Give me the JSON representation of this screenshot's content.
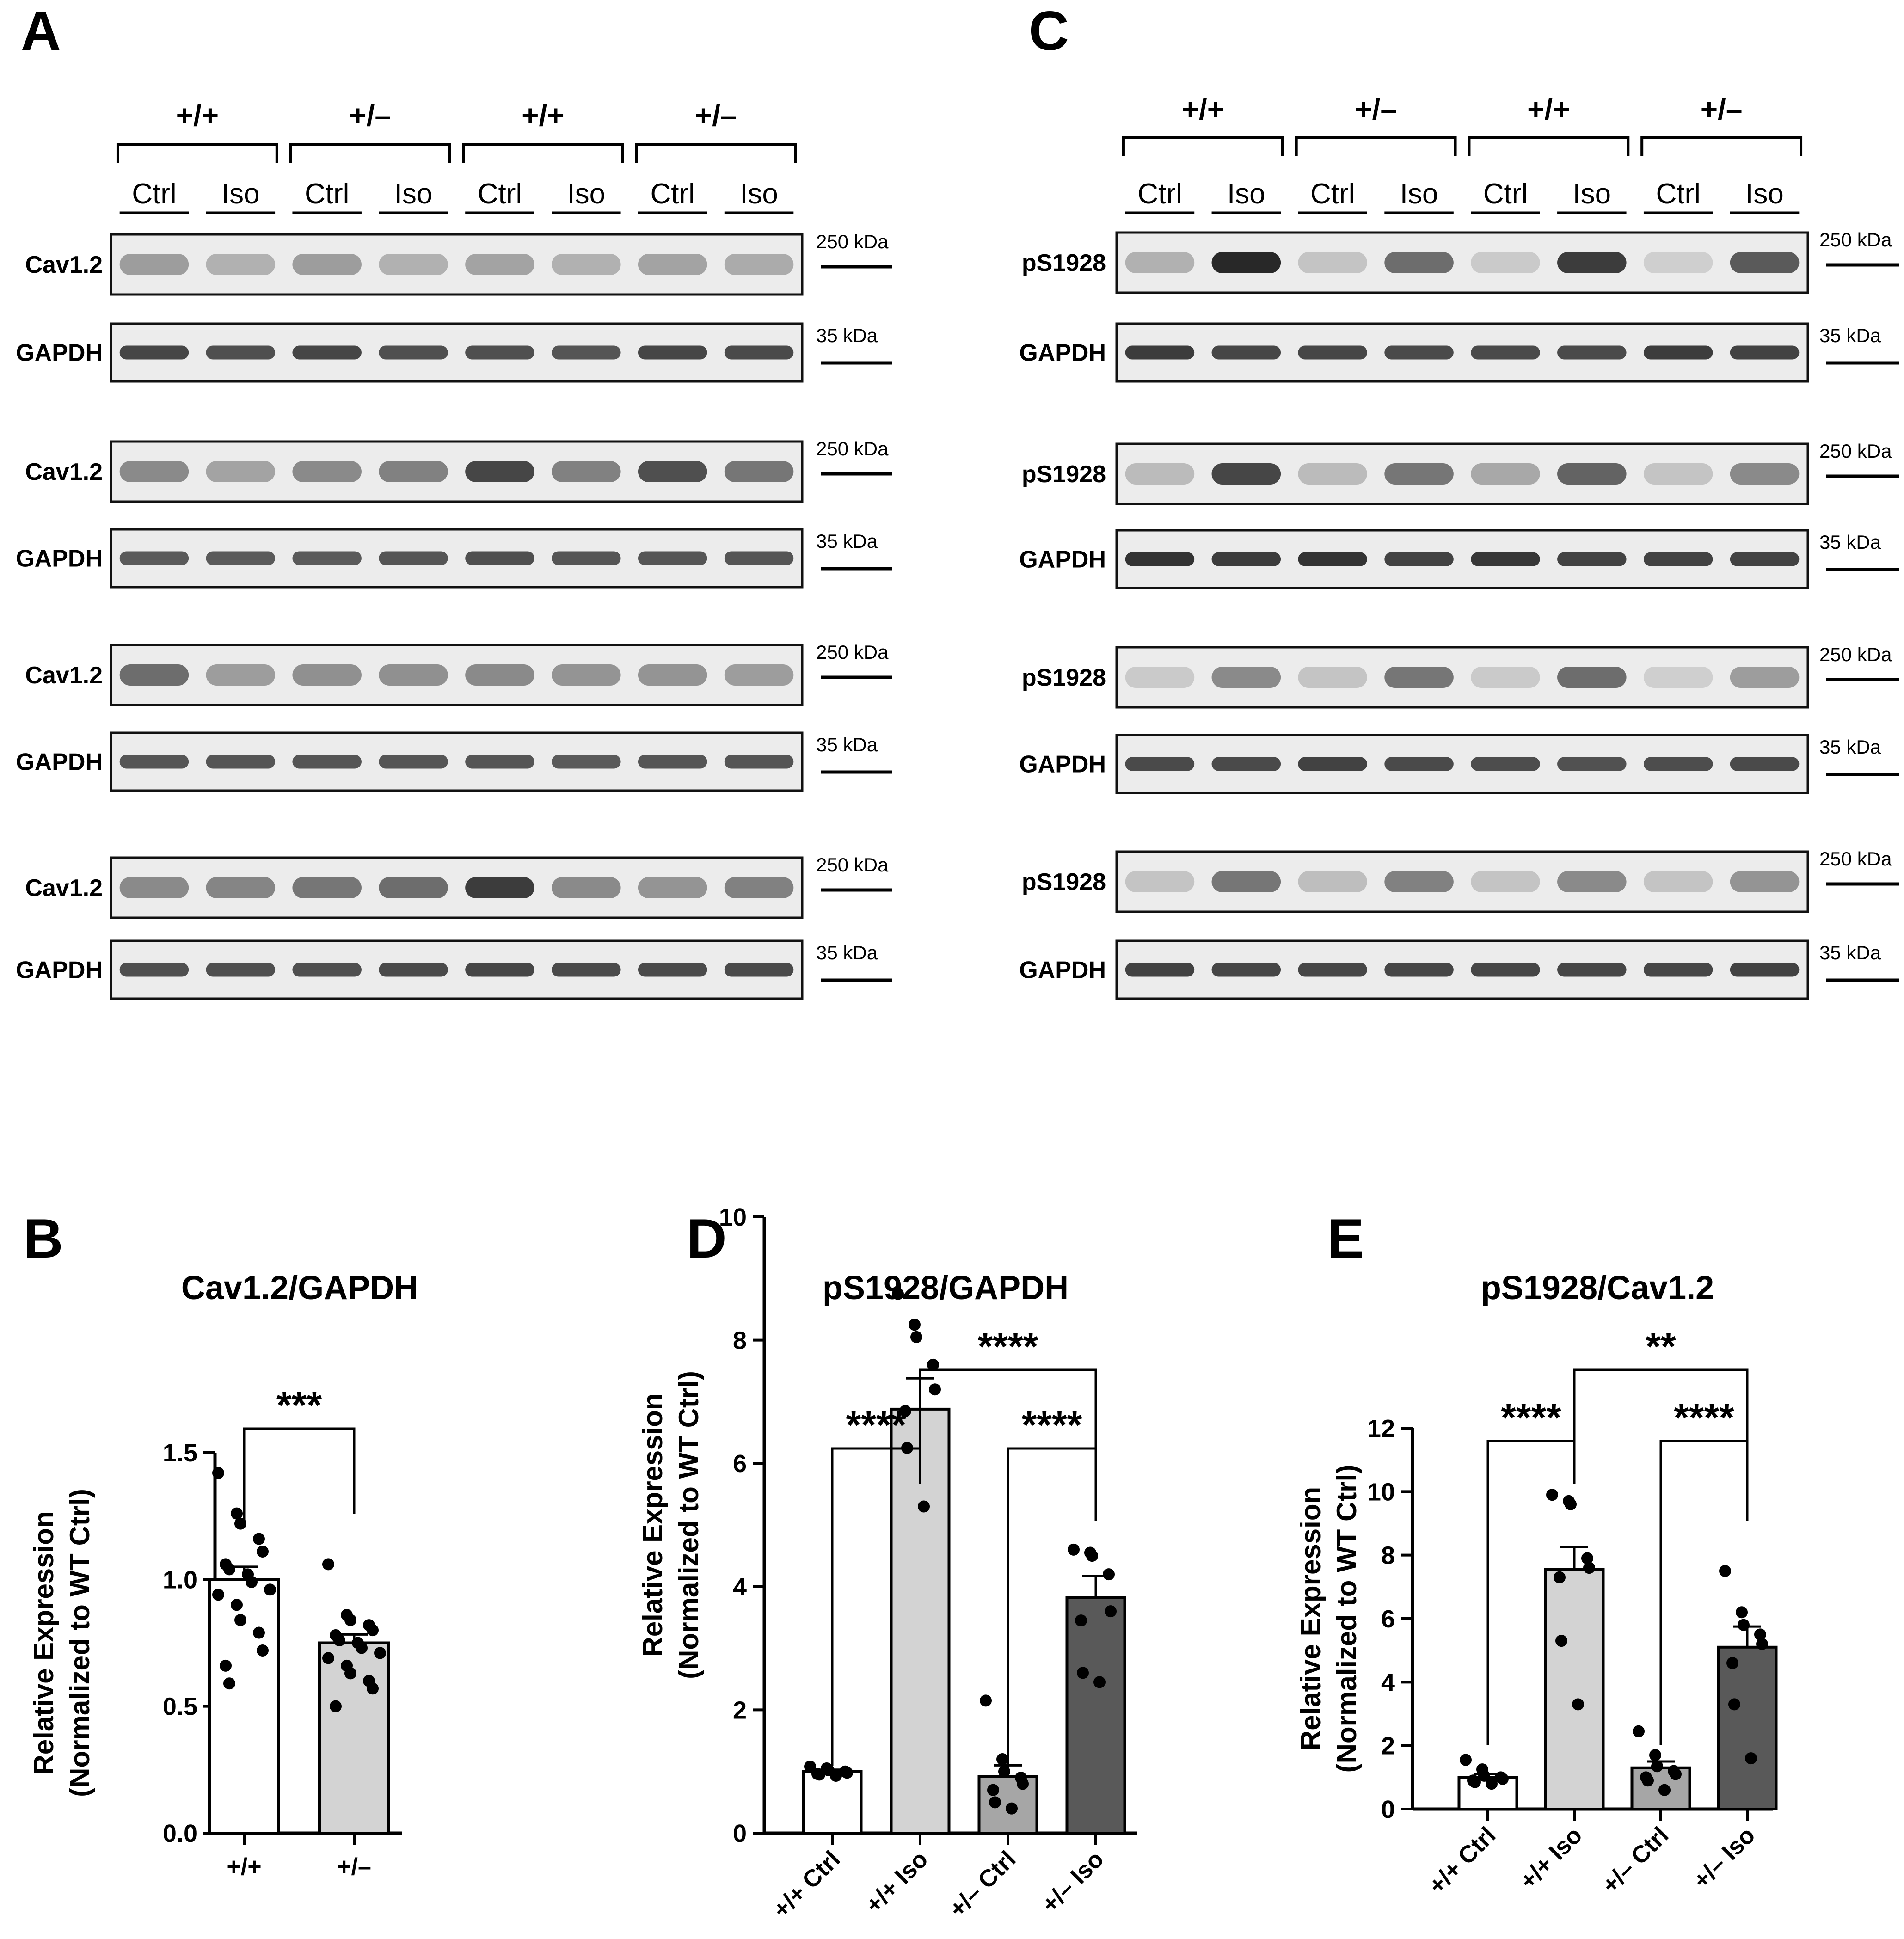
{
  "panels": {
    "A": "A",
    "B": "B",
    "C": "C",
    "D": "D",
    "E": "E"
  },
  "blots": {
    "genotypes": [
      "+/+",
      "+/–",
      "+/+",
      "+/–"
    ],
    "conditions": [
      "Ctrl",
      "Iso",
      "Ctrl",
      "Iso",
      "Ctrl",
      "Iso",
      "Ctrl",
      "Iso"
    ],
    "mw_target": "250 kDa",
    "mw_loading": "35 kDa",
    "A": {
      "target_label": "Cav1.2",
      "loading_label": "GAPDH",
      "target_intensity": [
        [
          0.35,
          0.25,
          0.35,
          0.25,
          0.32,
          0.25,
          0.32,
          0.28
        ],
        [
          0.45,
          0.32,
          0.45,
          0.5,
          0.8,
          0.5,
          0.75,
          0.55
        ],
        [
          0.6,
          0.35,
          0.42,
          0.42,
          0.45,
          0.4,
          0.4,
          0.35
        ],
        [
          0.45,
          0.48,
          0.55,
          0.6,
          0.85,
          0.45,
          0.4,
          0.5
        ]
      ],
      "loading_intensity": [
        [
          0.8,
          0.75,
          0.8,
          0.75,
          0.75,
          0.72,
          0.8,
          0.78
        ],
        [
          0.7,
          0.7,
          0.7,
          0.72,
          0.75,
          0.72,
          0.72,
          0.72
        ],
        [
          0.72,
          0.72,
          0.72,
          0.72,
          0.72,
          0.7,
          0.72,
          0.72
        ],
        [
          0.75,
          0.75,
          0.75,
          0.78,
          0.8,
          0.78,
          0.78,
          0.78
        ]
      ]
    },
    "C": {
      "target_label": "pS1928",
      "loading_label": "GAPDH",
      "target_intensity": [
        [
          0.25,
          0.95,
          0.15,
          0.6,
          0.12,
          0.85,
          0.1,
          0.7
        ],
        [
          0.2,
          0.8,
          0.2,
          0.55,
          0.3,
          0.65,
          0.15,
          0.45
        ],
        [
          0.12,
          0.45,
          0.15,
          0.55,
          0.12,
          0.6,
          0.1,
          0.35
        ],
        [
          0.15,
          0.55,
          0.18,
          0.5,
          0.15,
          0.45,
          0.15,
          0.4
        ]
      ],
      "loading_intensity": [
        [
          0.85,
          0.8,
          0.8,
          0.78,
          0.78,
          0.78,
          0.85,
          0.82
        ],
        [
          0.9,
          0.85,
          0.9,
          0.82,
          0.88,
          0.82,
          0.82,
          0.82
        ],
        [
          0.78,
          0.78,
          0.82,
          0.78,
          0.76,
          0.74,
          0.76,
          0.78
        ],
        [
          0.82,
          0.8,
          0.8,
          0.8,
          0.8,
          0.8,
          0.8,
          0.82
        ]
      ]
    }
  },
  "chart_data": [
    {
      "panel": "B",
      "type": "bar",
      "title": "Cav1.2/GAPDH",
      "ylabel_line1": "Relative Expression",
      "ylabel_line2": "(Normalized to WT Ctrl)",
      "ylim": [
        0,
        1.5
      ],
      "yticks": [
        "0.0",
        "0.5",
        "1.0",
        "1.5"
      ],
      "ytick_values": [
        0,
        0.5,
        1.0,
        1.5
      ],
      "categories": [
        "+/+",
        "+/–"
      ],
      "values": [
        1.0,
        0.75
      ],
      "sem": [
        0.05,
        0.033
      ],
      "colors": [
        "#ffffff",
        "#d3d3d3"
      ],
      "points": [
        [
          1.42,
          1.26,
          1.22,
          1.16,
          1.11,
          1.06,
          1.04,
          1.02,
          0.99,
          0.96,
          0.94,
          0.9,
          0.84,
          0.79,
          0.72,
          0.66,
          0.59
        ],
        [
          1.06,
          0.86,
          0.84,
          0.82,
          0.8,
          0.78,
          0.76,
          0.75,
          0.73,
          0.71,
          0.69,
          0.66,
          0.63,
          0.6,
          0.57,
          0.5
        ]
      ],
      "comparisons": [
        {
          "from": 0,
          "to": 1,
          "label": "***"
        }
      ]
    },
    {
      "panel": "D",
      "type": "bar",
      "title": "pS1928/GAPDH",
      "ylabel_line1": "Relative Expression",
      "ylabel_line2": "(Normalized to WT Ctrl)",
      "ylim": [
        0,
        10
      ],
      "yticks": [
        "0",
        "2",
        "4",
        "6",
        "8",
        "10"
      ],
      "ytick_values": [
        0,
        2,
        4,
        6,
        8,
        10
      ],
      "categories": [
        "+/+ Ctrl",
        "+/+ Iso",
        "+/– Ctrl",
        "+/– Iso"
      ],
      "values": [
        1.0,
        6.88,
        0.92,
        3.82
      ],
      "sem": [
        0.03,
        0.5,
        0.18,
        0.35
      ],
      "colors": [
        "#ffffff",
        "#d3d3d3",
        "#a6a6a6",
        "#595959"
      ],
      "points": [
        [
          1.08,
          1.05,
          1.02,
          1.0,
          0.98,
          0.96,
          0.95,
          0.93
        ],
        [
          8.75,
          8.25,
          8.05,
          7.6,
          7.2,
          6.85,
          6.25,
          5.3
        ],
        [
          2.15,
          1.2,
          1.0,
          0.9,
          0.8,
          0.7,
          0.5,
          0.4
        ],
        [
          4.6,
          4.55,
          4.5,
          4.2,
          3.6,
          3.45,
          2.6,
          2.45
        ]
      ],
      "comparisons": [
        {
          "from": 0,
          "to": 1,
          "label": "****",
          "level": 0
        },
        {
          "from": 2,
          "to": 3,
          "label": "****",
          "level": 0
        },
        {
          "from": 1,
          "to": 3,
          "label": "****",
          "level": 1
        }
      ]
    },
    {
      "panel": "E",
      "type": "bar",
      "title": "pS1928/Cav1.2",
      "ylabel_line1": "Relative Expression",
      "ylabel_line2": "(Normalized to WT Ctrl)",
      "ylim": [
        0,
        12
      ],
      "yticks": [
        "0",
        "2",
        "4",
        "6",
        "8",
        "10",
        "12"
      ],
      "ytick_values": [
        0,
        2,
        4,
        6,
        8,
        10,
        12
      ],
      "categories": [
        "+/+ Ctrl",
        "+/+ Iso",
        "+/– Ctrl",
        "+/– Iso"
      ],
      "values": [
        1.0,
        7.55,
        1.3,
        5.1
      ],
      "sem": [
        0.1,
        0.7,
        0.2,
        0.65
      ],
      "colors": [
        "#ffffff",
        "#d3d3d3",
        "#a6a6a6",
        "#595959"
      ],
      "points": [
        [
          1.55,
          1.25,
          1.05,
          1.0,
          0.95,
          0.9,
          0.85,
          0.8
        ],
        [
          9.9,
          9.7,
          9.6,
          7.9,
          7.6,
          7.3,
          5.3,
          3.3
        ],
        [
          2.45,
          1.7,
          1.35,
          1.2,
          1.1,
          1.0,
          0.9,
          0.6
        ],
        [
          7.5,
          6.2,
          5.8,
          5.5,
          5.2,
          4.6,
          3.3,
          1.6
        ]
      ],
      "comparisons": [
        {
          "from": 0,
          "to": 1,
          "label": "****",
          "level": 0
        },
        {
          "from": 2,
          "to": 3,
          "label": "****",
          "level": 0
        },
        {
          "from": 1,
          "to": 3,
          "label": "**",
          "level": 1
        }
      ]
    }
  ]
}
